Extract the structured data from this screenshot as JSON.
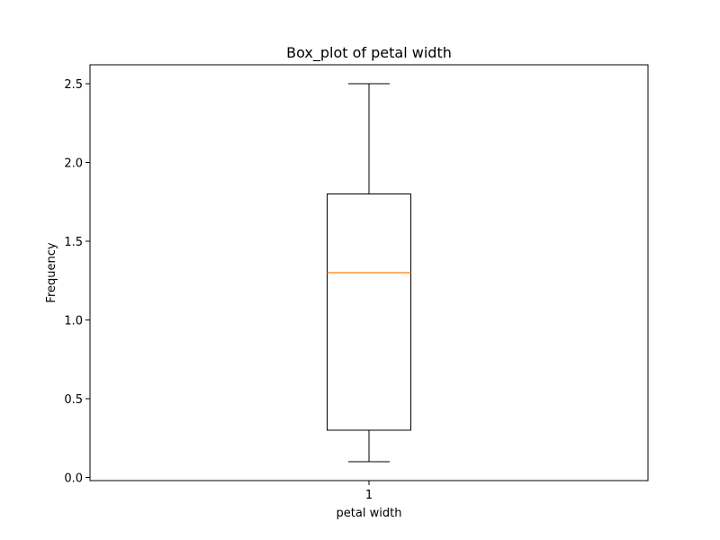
{
  "chart_data": {
    "type": "box",
    "title": "Box_plot of petal width",
    "xlabel": "petal width",
    "ylabel": "Frequency",
    "categories": [
      "1"
    ],
    "ylim": [
      -0.02,
      2.62
    ],
    "yticks": [
      "0.0",
      "0.5",
      "1.0",
      "1.5",
      "2.0",
      "2.5"
    ],
    "grid": false,
    "boxes": [
      {
        "category": "1",
        "whisker_low": 0.1,
        "q1": 0.3,
        "median": 1.3,
        "q3": 1.8,
        "whisker_high": 2.5
      }
    ],
    "colors": {
      "box": "#000000",
      "median": "#ff7f0e",
      "axes": "#000000"
    }
  }
}
